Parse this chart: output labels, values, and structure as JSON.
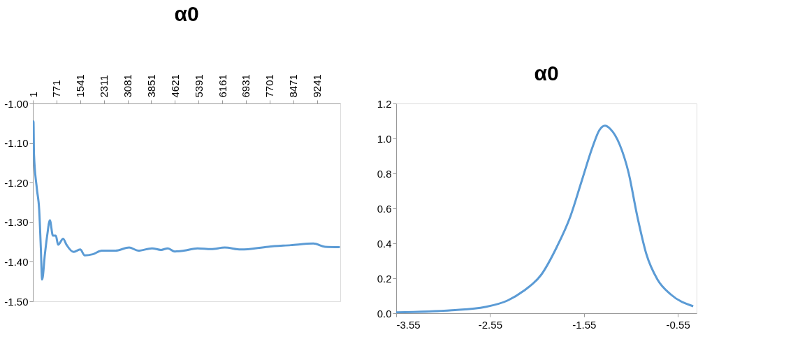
{
  "chart_data": [
    {
      "type": "line",
      "title": "α0",
      "color": "#5b9bd5",
      "line_style": "solid",
      "marker": "none",
      "grid": false,
      "x": [
        1,
        22,
        38,
        133,
        208,
        260,
        304,
        393,
        467,
        556,
        653,
        749,
        823,
        986,
        1097,
        1320,
        1542,
        1690,
        1949,
        2245,
        2690,
        3134,
        3431,
        3875,
        4171,
        4393,
        4616,
        4911,
        5356,
        5800,
        6244,
        6764,
        7653,
        8393,
        9127,
        9504,
        9987
      ],
      "values": [
        -1.05,
        -1.045,
        -1.128,
        -1.216,
        -1.269,
        -1.363,
        -1.445,
        -1.381,
        -1.334,
        -1.295,
        -1.334,
        -1.334,
        -1.357,
        -1.342,
        -1.357,
        -1.375,
        -1.369,
        -1.384,
        -1.381,
        -1.372,
        -1.372,
        -1.364,
        -1.372,
        -1.366,
        -1.37,
        -1.366,
        -1.374,
        -1.372,
        -1.366,
        -1.368,
        -1.364,
        -1.369,
        -1.362,
        -1.358,
        -1.354,
        -1.362,
        -1.363
      ],
      "xlim": [
        1,
        10000
      ],
      "xticks": [
        1,
        771,
        1541,
        2311,
        3081,
        3851,
        4621,
        5391,
        6161,
        6931,
        7701,
        8471,
        9241
      ],
      "ylim": [
        -1.5,
        -1.0
      ],
      "yticks": [
        {
          "value": -1.0,
          "label": "-1.00"
        },
        {
          "value": -1.1,
          "label": "-1.10"
        },
        {
          "value": -1.2,
          "label": "-1.20"
        },
        {
          "value": -1.3,
          "label": "-1.30"
        },
        {
          "value": -1.4,
          "label": "-1.40"
        },
        {
          "value": -1.5,
          "label": "-1.50"
        }
      ]
    },
    {
      "type": "line",
      "title": "α0",
      "color": "#5b9bd5",
      "line_style": "solid",
      "marker": "none",
      "grid": false,
      "x": [
        -3.55,
        -2.957,
        -2.6,
        -2.362,
        -2.195,
        -2.005,
        -1.838,
        -1.695,
        -1.576,
        -1.457,
        -1.386,
        -1.326,
        -1.267,
        -1.171,
        -1.076,
        -0.981,
        -0.886,
        -0.767,
        -0.624,
        -0.386
      ],
      "values": [
        0.005,
        0.017,
        0.036,
        0.073,
        0.127,
        0.22,
        0.38,
        0.553,
        0.753,
        0.953,
        1.047,
        1.073,
        1.053,
        0.967,
        0.807,
        0.553,
        0.34,
        0.193,
        0.107,
        0.04
      ],
      "xlim": [
        -3.55,
        -0.35
      ],
      "xticks": [
        -3.55,
        -2.55,
        -1.55,
        -0.55
      ],
      "ylim": [
        0,
        1.2
      ],
      "yticks": [
        {
          "value": 0,
          "label": "0.0"
        },
        {
          "value": 0.2,
          "label": "0.2"
        },
        {
          "value": 0.4,
          "label": "0.4"
        },
        {
          "value": 0.6,
          "label": "0.6"
        },
        {
          "value": 0.8,
          "label": "0.8"
        },
        {
          "value": 1.0,
          "label": "1.0"
        },
        {
          "value": 1.2,
          "label": "1.2"
        }
      ]
    }
  ]
}
